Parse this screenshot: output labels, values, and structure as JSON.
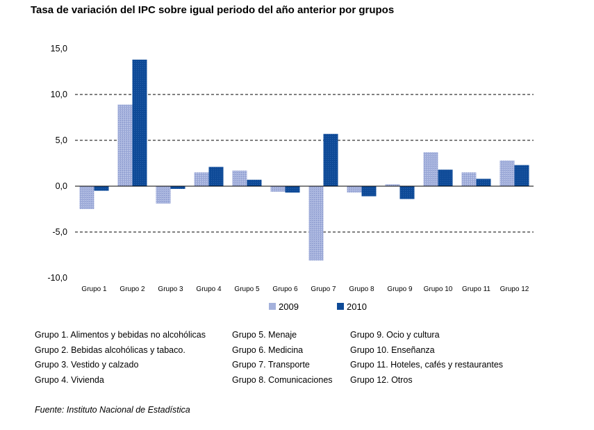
{
  "chart_data": {
    "type": "bar",
    "title": "Tasa de variación del IPC sobre igual periodo del año anterior por grupos",
    "categories": [
      "Grupo 1",
      "Grupo 2",
      "Grupo 3",
      "Grupo 4",
      "Grupo 5",
      "Grupo 6",
      "Grupo 7",
      "Grupo 8",
      "Grupo 9",
      "Grupo 10",
      "Grupo 11",
      "Grupo 12"
    ],
    "series": [
      {
        "name": "2009",
        "color": "#a4b1dc",
        "values": [
          -2.5,
          8.9,
          -1.9,
          1.5,
          1.7,
          -0.6,
          -8.1,
          -0.7,
          0.2,
          3.7,
          1.5,
          2.8
        ]
      },
      {
        "name": "2010",
        "color": "#0e4a97",
        "values": [
          -0.5,
          13.8,
          -0.3,
          2.1,
          0.7,
          -0.7,
          5.7,
          -1.1,
          -1.4,
          1.8,
          0.8,
          2.3
        ]
      }
    ],
    "yticks": [
      "15,0",
      "10,0",
      "5,0",
      "0,0",
      "-5,0",
      "-10,0"
    ],
    "ylim": [
      -10,
      15
    ],
    "grid": true,
    "legend_position": "bottom"
  },
  "legend_groups": [
    [
      "Grupo 1. Alimentos y bebidas no alcohólicas",
      "Grupo 2. Bebidas alcohólicas y  tabaco.",
      "Grupo 3. Vestido y calzado",
      "Grupo 4. Vivienda"
    ],
    [
      "Grupo 5. Menaje",
      "Grupo 6. Medicina",
      "Grupo 7. Transporte",
      "Grupo 8. Comunicaciones"
    ],
    [
      "Grupo 9. Ocio y cultura",
      "Grupo 10. Enseñanza",
      "Grupo 11. Hoteles, cafés y restaurantes",
      "Grupo 12. Otros"
    ]
  ],
  "source": "Fuente: Instituto Nacional de Estadística"
}
